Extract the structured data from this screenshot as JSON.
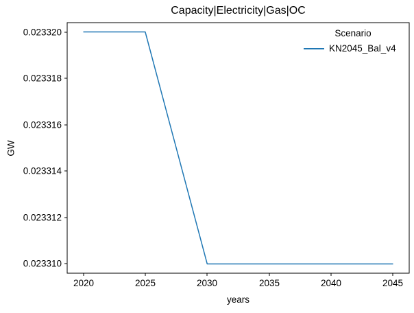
{
  "chart_data": {
    "type": "line",
    "title": "Capacity|Electricity|Gas|OC",
    "xlabel": "years",
    "ylabel": "GW",
    "x": [
      2020,
      2025,
      2030,
      2035,
      2040,
      2045
    ],
    "series": [
      {
        "name": "KN2045_Bal_v4",
        "color": "#1f77b4",
        "values": [
          0.02332,
          0.02332,
          0.02331,
          0.02331,
          0.02331,
          0.02331
        ]
      }
    ],
    "xtick_values": [
      2020,
      2025,
      2030,
      2035,
      2040,
      2045
    ],
    "xtick_labels": [
      "2020",
      "2025",
      "2030",
      "2035",
      "2040",
      "2045"
    ],
    "ytick_values": [
      0.02331,
      0.023312,
      0.023314,
      0.023316,
      0.023318,
      0.02332
    ],
    "ytick_labels": [
      "0.023310",
      "0.023312",
      "0.023314",
      "0.023316",
      "0.023318",
      "0.023320"
    ],
    "xlim": [
      2018.7,
      2046.3
    ],
    "ylim": [
      0.0233096,
      0.0233204
    ],
    "grid": false,
    "legend": {
      "title": "Scenario",
      "position": "upper right",
      "frame": false
    },
    "axis_color": "#000000",
    "text_color": "#000000",
    "background": "#ffffff"
  }
}
